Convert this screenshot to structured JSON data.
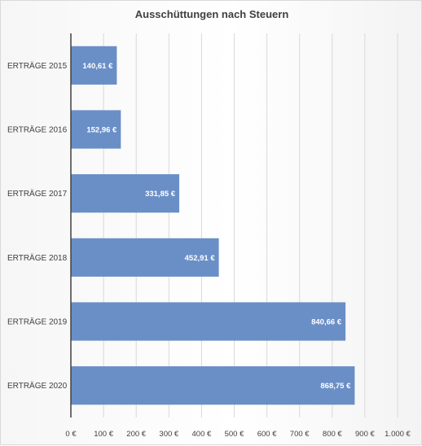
{
  "chart_data": {
    "type": "bar",
    "orientation": "horizontal",
    "title": "Ausschüttungen nach Steuern",
    "categories": [
      "ERTRÄGE 2015",
      "ERTRÄGE 2016",
      "ERTRÄGE 2017",
      "ERTRÄGE 2018",
      "ERTRÄGE 2019",
      "ERTRÄGE 2020"
    ],
    "values": [
      140.61,
      152.96,
      331.85,
      452.91,
      840.66,
      868.75
    ],
    "value_labels": [
      "140,61 €",
      "152,96 €",
      "331,85 €",
      "452,91 €",
      "840,66 €",
      "868,75 €"
    ],
    "xlim": [
      0,
      1000
    ],
    "x_ticks": [
      0,
      100,
      200,
      300,
      400,
      500,
      600,
      700,
      800,
      900,
      1000
    ],
    "x_tick_labels": [
      "0 €",
      "100 €",
      "200 €",
      "300 €",
      "400 €",
      "500 €",
      "600 €",
      "700 €",
      "800 €",
      "900 €",
      "1.000 €"
    ],
    "grid": "vertical",
    "legend": "none",
    "colors": {
      "bar": "#6a8fc7",
      "grid": "#d9d9d9",
      "axis": "#404040"
    }
  }
}
